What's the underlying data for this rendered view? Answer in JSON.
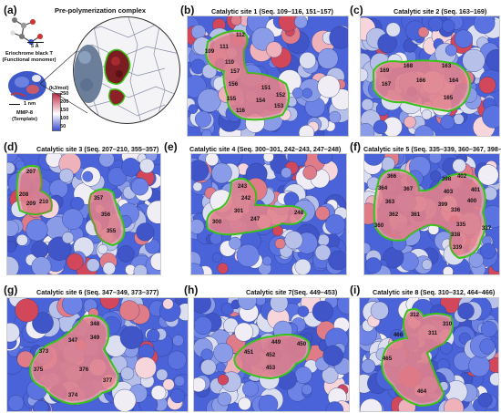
{
  "panel_a": {
    "letter": "(a)",
    "title": "Pre-polymerization complex",
    "monomer_label": "Eriochrome black T\n(Functional monomer)",
    "template_label": "MMP-8\n(Template)",
    "scale_5a": "5 Å",
    "scale_1nm": "1 nm",
    "legend_unit": "(kJ/mol)",
    "legend_ticks": [
      "250",
      "200",
      "150",
      "100",
      "50"
    ]
  },
  "panels": [
    {
      "id": "b",
      "letter": "(b)",
      "title": "Catalytic site 1 (Seq. 109–116, 151–157)",
      "residues": [
        "112",
        "109",
        "111",
        "110",
        "157",
        "156",
        "155",
        "116",
        "151",
        "154",
        "152",
        "153"
      ]
    },
    {
      "id": "c",
      "letter": "(c)",
      "title": "Catalytic site 2 (Seq. 163–169)",
      "residues": [
        "168",
        "163",
        "169",
        "167",
        "166",
        "164",
        "165"
      ]
    },
    {
      "id": "d",
      "letter": "(d)",
      "title": "Catalytic site 3 (Seq. 207–210, 355–357)",
      "residues": [
        "207",
        "208",
        "209",
        "210",
        "357",
        "356",
        "355"
      ]
    },
    {
      "id": "e",
      "letter": "(e)",
      "title": "Catalytic site 4 (Seq. 300–301, 242–243, 247–248)",
      "residues": [
        "243",
        "242",
        "301",
        "300",
        "247",
        "248"
      ]
    },
    {
      "id": "f",
      "letter": "(f)",
      "title": "Catalytic site 5 (Seq. 335–339, 360–367, 398–403)",
      "residues": [
        "366",
        "364",
        "367",
        "398",
        "402",
        "401",
        "403",
        "400",
        "363",
        "362",
        "399",
        "361",
        "336",
        "360",
        "335",
        "338",
        "337",
        "339"
      ]
    },
    {
      "id": "g",
      "letter": "(g)",
      "title": "Catalytic site 6 (Seq. 347–349, 373–377)",
      "residues": [
        "348",
        "349",
        "347",
        "373",
        "375",
        "376",
        "377",
        "374"
      ]
    },
    {
      "id": "h",
      "letter": "(h)",
      "title": "Catalytic site 7(Seq. 449–453)",
      "residues": [
        "449",
        "450",
        "451",
        "452",
        "453"
      ]
    },
    {
      "id": "i",
      "letter": "(i)",
      "title": "Catalytic site 8 (Seq. 310–312, 464–466)",
      "residues": [
        "312",
        "310",
        "311",
        "466",
        "465",
        "464"
      ]
    }
  ],
  "colors": {
    "protein_blue": "#4a63d9",
    "protein_light": "#b7c0e8",
    "hot_red": "#d2485a",
    "pocket_green": "#38c21a",
    "legend_top": "#c0304a",
    "legend_bottom": "#3b4fd0"
  }
}
